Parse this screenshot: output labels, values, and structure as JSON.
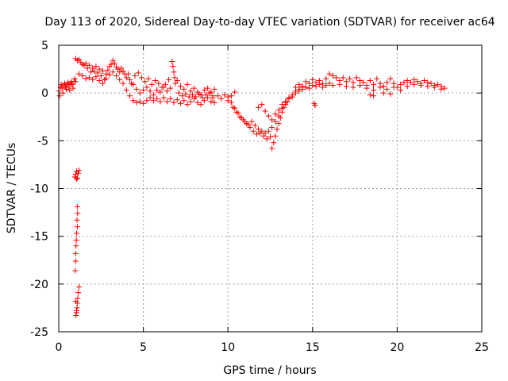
{
  "chart_data": {
    "type": "scatter",
    "title": "Day 113 of 2020, Sidereal Day-to-day VTEC variation (SDTVAR) for receiver ac64",
    "xlabel": "GPS time / hours",
    "ylabel": "SDTVAR / TECUs",
    "xlim": [
      0,
      25
    ],
    "ylim": [
      -25,
      5
    ],
    "xticks": [
      0,
      5,
      10,
      15,
      20,
      25
    ],
    "yticks": [
      -25,
      -20,
      -15,
      -10,
      -5,
      0,
      5
    ],
    "grid": true,
    "marker": "+",
    "series_color": "#ff0000",
    "series": [
      {
        "name": "SDTVAR",
        "points": [
          [
            0.0,
            0.2
          ],
          [
            0.05,
            -0.3
          ],
          [
            0.1,
            0.6
          ],
          [
            0.15,
            0.9
          ],
          [
            0.2,
            0.5
          ],
          [
            0.25,
            0.0
          ],
          [
            0.3,
            0.8
          ],
          [
            0.35,
            1.0
          ],
          [
            0.4,
            0.6
          ],
          [
            0.45,
            0.4
          ],
          [
            0.5,
            0.9
          ],
          [
            0.55,
            1.1
          ],
          [
            0.6,
            0.7
          ],
          [
            0.65,
            0.3
          ],
          [
            0.7,
            1.0
          ],
          [
            0.75,
            1.2
          ],
          [
            0.8,
            0.9
          ],
          [
            0.85,
            0.5
          ],
          [
            0.9,
            1.2
          ],
          [
            0.95,
            1.5
          ],
          [
            1.0,
            1.2
          ],
          [
            0.95,
            -8.8
          ],
          [
            1.0,
            -8.5
          ],
          [
            1.05,
            -8.2
          ],
          [
            1.1,
            -8.9
          ],
          [
            1.15,
            -8.4
          ],
          [
            1.2,
            -8.1
          ],
          [
            1.05,
            -9.0
          ],
          [
            1.1,
            -11.9
          ],
          [
            1.12,
            -12.6
          ],
          [
            1.08,
            -13.3
          ],
          [
            1.1,
            -14.0
          ],
          [
            1.06,
            -14.7
          ],
          [
            1.04,
            -15.4
          ],
          [
            1.02,
            -16.0
          ],
          [
            1.0,
            -16.8
          ],
          [
            1.0,
            -17.6
          ],
          [
            0.98,
            -18.6
          ],
          [
            1.2,
            -20.3
          ],
          [
            1.15,
            -20.9
          ],
          [
            1.12,
            -21.5
          ],
          [
            1.1,
            -22.0
          ],
          [
            1.08,
            -22.5
          ],
          [
            1.05,
            -23.0
          ],
          [
            1.02,
            -23.3
          ],
          [
            1.0,
            -21.8
          ],
          [
            1.05,
            -22.8
          ],
          [
            1.0,
            3.6
          ],
          [
            1.1,
            3.4
          ],
          [
            1.2,
            3.5
          ],
          [
            1.3,
            3.2
          ],
          [
            1.4,
            3.0
          ],
          [
            1.5,
            2.9
          ],
          [
            1.6,
            3.1
          ],
          [
            1.7,
            2.6
          ],
          [
            1.8,
            2.9
          ],
          [
            1.9,
            2.2
          ],
          [
            2.0,
            2.6
          ],
          [
            2.1,
            2.3
          ],
          [
            2.2,
            2.8
          ],
          [
            2.3,
            2.1
          ],
          [
            2.4,
            2.5
          ],
          [
            2.5,
            1.8
          ],
          [
            2.6,
            2.3
          ],
          [
            2.7,
            1.4
          ],
          [
            2.8,
            2.0
          ],
          [
            2.9,
            2.4
          ],
          [
            3.0,
            2.8
          ],
          [
            3.1,
            3.0
          ],
          [
            3.2,
            3.4
          ],
          [
            3.3,
            3.1
          ],
          [
            3.4,
            2.7
          ],
          [
            3.5,
            2.5
          ],
          [
            3.6,
            2.2
          ],
          [
            3.7,
            2.6
          ],
          [
            3.8,
            2.3
          ],
          [
            3.9,
            2.0
          ],
          [
            4.0,
            1.6
          ],
          [
            4.1,
            2.0
          ],
          [
            4.2,
            1.4
          ],
          [
            4.3,
            1.0
          ],
          [
            1.2,
            2.0
          ],
          [
            1.4,
            1.8
          ],
          [
            1.6,
            1.5
          ],
          [
            1.8,
            1.6
          ],
          [
            2.0,
            1.4
          ],
          [
            2.2,
            1.7
          ],
          [
            2.4,
            1.3
          ],
          [
            2.6,
            1.0
          ],
          [
            2.8,
            1.5
          ],
          [
            3.0,
            1.9
          ],
          [
            3.2,
            2.2
          ],
          [
            3.4,
            1.8
          ],
          [
            3.6,
            1.4
          ],
          [
            3.8,
            1.0
          ],
          [
            4.0,
            0.3
          ],
          [
            4.2,
            -0.3
          ],
          [
            4.4,
            -0.8
          ],
          [
            4.6,
            -1.0
          ],
          [
            4.8,
            -0.9
          ],
          [
            5.0,
            -1.1
          ],
          [
            5.2,
            -0.8
          ],
          [
            5.4,
            -0.5
          ],
          [
            5.6,
            -0.8
          ],
          [
            5.8,
            -0.6
          ],
          [
            6.0,
            -0.9
          ],
          [
            6.2,
            -0.5
          ],
          [
            6.4,
            -0.9
          ],
          [
            6.6,
            -0.6
          ],
          [
            6.8,
            -1.0
          ],
          [
            7.0,
            -0.7
          ],
          [
            7.2,
            -1.1
          ],
          [
            7.4,
            -0.8
          ],
          [
            7.6,
            -1.2
          ],
          [
            7.8,
            -0.9
          ],
          [
            8.0,
            -0.6
          ],
          [
            8.2,
            -1.0
          ],
          [
            8.4,
            -1.2
          ],
          [
            8.6,
            -0.8
          ],
          [
            8.8,
            -0.5
          ],
          [
            9.0,
            -0.9
          ],
          [
            9.1,
            -0.5
          ],
          [
            9.2,
            -1.0
          ],
          [
            4.4,
            0.9
          ],
          [
            4.6,
            0.4
          ],
          [
            4.8,
            0.0
          ],
          [
            5.0,
            0.3
          ],
          [
            5.2,
            0.6
          ],
          [
            5.4,
            0.2
          ],
          [
            5.6,
            -0.2
          ],
          [
            5.8,
            0.3
          ],
          [
            6.0,
            0.1
          ],
          [
            6.2,
            0.6
          ],
          [
            6.4,
            0.2
          ],
          [
            6.6,
            0.5
          ],
          [
            6.7,
            3.3
          ],
          [
            6.75,
            2.8
          ],
          [
            6.8,
            2.2
          ],
          [
            6.85,
            1.6
          ],
          [
            6.9,
            1.0
          ],
          [
            7.0,
            1.3
          ],
          [
            7.2,
            0.7
          ],
          [
            7.4,
            0.4
          ],
          [
            7.6,
            0.9
          ],
          [
            7.8,
            0.2
          ],
          [
            8.0,
            0.5
          ],
          [
            8.2,
            0.1
          ],
          [
            8.4,
            -0.2
          ],
          [
            8.6,
            0.3
          ],
          [
            8.8,
            0.5
          ],
          [
            9.0,
            0.1
          ],
          [
            9.2,
            0.4
          ],
          [
            4.5,
            1.8
          ],
          [
            4.7,
            2.1
          ],
          [
            4.9,
            1.6
          ],
          [
            5.1,
            1.2
          ],
          [
            5.3,
            1.5
          ],
          [
            5.5,
            0.9
          ],
          [
            5.7,
            1.3
          ],
          [
            5.9,
            1.0
          ],
          [
            6.1,
            0.6
          ],
          [
            6.3,
            0.9
          ],
          [
            6.5,
            1.4
          ],
          [
            7.1,
            0.0
          ],
          [
            7.3,
            -0.3
          ],
          [
            7.5,
            -0.1
          ],
          [
            7.7,
            -0.4
          ],
          [
            7.9,
            -0.2
          ],
          [
            8.1,
            -0.4
          ],
          [
            8.3,
            -0.1
          ],
          [
            8.5,
            -0.5
          ],
          [
            8.7,
            -0.2
          ],
          [
            8.9,
            0.0
          ],
          [
            9.1,
            -0.3
          ],
          [
            9.4,
            -0.3
          ],
          [
            9.6,
            -0.6
          ],
          [
            9.8,
            -0.2
          ],
          [
            10.0,
            -0.8
          ],
          [
            10.2,
            -0.3
          ],
          [
            10.4,
            0.1
          ],
          [
            10.3,
            -1.5
          ],
          [
            10.5,
            -2.0
          ],
          [
            10.7,
            -2.5
          ],
          [
            10.9,
            -2.8
          ],
          [
            11.1,
            -3.2
          ],
          [
            11.3,
            -3.6
          ],
          [
            11.5,
            -4.0
          ],
          [
            11.7,
            -4.3
          ],
          [
            11.9,
            -4.2
          ],
          [
            12.1,
            -4.5
          ],
          [
            12.3,
            -4.8
          ],
          [
            12.5,
            -4.6
          ],
          [
            12.6,
            -5.8
          ],
          [
            12.7,
            -5.2
          ],
          [
            12.8,
            -4.5
          ],
          [
            12.9,
            -3.8
          ],
          [
            13.0,
            -3.2
          ],
          [
            13.1,
            -2.6
          ],
          [
            13.2,
            -2.0
          ],
          [
            13.3,
            -1.5
          ],
          [
            13.4,
            -1.2
          ],
          [
            13.5,
            -0.9
          ],
          [
            10.0,
            -0.4
          ],
          [
            10.2,
            -1.0
          ],
          [
            10.4,
            -1.6
          ],
          [
            10.6,
            -2.1
          ],
          [
            10.8,
            -2.6
          ],
          [
            11.0,
            -3.0
          ],
          [
            11.2,
            -3.3
          ],
          [
            11.4,
            -3.0
          ],
          [
            11.6,
            -3.4
          ],
          [
            11.8,
            -3.8
          ],
          [
            12.0,
            -4.0
          ],
          [
            12.2,
            -4.2
          ],
          [
            12.4,
            -4.0
          ],
          [
            12.6,
            -3.6
          ],
          [
            12.8,
            -3.0
          ],
          [
            13.0,
            -2.4
          ],
          [
            13.2,
            -1.6
          ],
          [
            13.4,
            -1.0
          ],
          [
            13.6,
            -0.5
          ],
          [
            13.8,
            -0.2
          ],
          [
            14.0,
            0.2
          ],
          [
            11.8,
            -1.5
          ],
          [
            12.0,
            -1.2
          ],
          [
            12.2,
            -1.9
          ],
          [
            12.4,
            -2.4
          ],
          [
            12.6,
            -2.8
          ],
          [
            12.8,
            -2.2
          ],
          [
            13.0,
            -1.8
          ],
          [
            13.2,
            -1.2
          ],
          [
            13.4,
            -0.9
          ],
          [
            13.6,
            -0.6
          ],
          [
            13.8,
            -0.4
          ],
          [
            14.0,
            0.0
          ],
          [
            14.2,
            0.4
          ],
          [
            14.4,
            0.6
          ],
          [
            14.0,
            0.6
          ],
          [
            14.2,
            0.9
          ],
          [
            14.4,
            0.7
          ],
          [
            14.6,
            1.2
          ],
          [
            14.8,
            1.0
          ],
          [
            15.0,
            1.4
          ],
          [
            15.2,
            1.1
          ],
          [
            15.4,
            1.3
          ],
          [
            15.6,
            1.0
          ],
          [
            15.8,
            1.5
          ],
          [
            16.0,
            2.0
          ],
          [
            16.2,
            1.8
          ],
          [
            16.4,
            1.6
          ],
          [
            16.6,
            1.3
          ],
          [
            16.8,
            1.6
          ],
          [
            17.0,
            1.2
          ],
          [
            17.2,
            1.5
          ],
          [
            17.4,
            1.1
          ],
          [
            17.6,
            1.6
          ],
          [
            17.8,
            1.3
          ],
          [
            18.0,
            1.1
          ],
          [
            18.2,
            0.8
          ],
          [
            18.4,
            1.3
          ],
          [
            18.6,
            0.9
          ],
          [
            18.8,
            1.5
          ],
          [
            19.0,
            1.0
          ],
          [
            19.2,
            0.7
          ],
          [
            19.4,
            1.1
          ],
          [
            19.6,
            1.5
          ],
          [
            19.8,
            1.0
          ],
          [
            20.0,
            0.6
          ],
          [
            20.2,
            0.9
          ],
          [
            20.4,
            1.1
          ],
          [
            20.6,
            1.3
          ],
          [
            20.8,
            1.1
          ],
          [
            21.0,
            1.4
          ],
          [
            21.2,
            1.2
          ],
          [
            21.4,
            1.0
          ],
          [
            21.6,
            1.3
          ],
          [
            21.8,
            1.1
          ],
          [
            22.0,
            1.0
          ],
          [
            22.2,
            0.8
          ],
          [
            22.4,
            0.9
          ],
          [
            22.6,
            0.7
          ],
          [
            22.8,
            0.5
          ],
          [
            14.2,
            0.2
          ],
          [
            14.4,
            0.4
          ],
          [
            14.6,
            0.6
          ],
          [
            14.8,
            0.5
          ],
          [
            15.0,
            0.8
          ],
          [
            15.2,
            0.7
          ],
          [
            15.4,
            0.9
          ],
          [
            15.6,
            0.6
          ],
          [
            15.8,
            0.8
          ],
          [
            16.0,
            1.0
          ],
          [
            16.2,
            0.8
          ],
          [
            16.6,
            0.9
          ],
          [
            17.0,
            0.7
          ],
          [
            17.4,
            0.6
          ],
          [
            17.8,
            0.8
          ],
          [
            18.2,
            0.5
          ],
          [
            18.6,
            0.3
          ],
          [
            19.0,
            0.6
          ],
          [
            19.4,
            0.4
          ],
          [
            19.8,
            0.6
          ],
          [
            20.2,
            0.3
          ],
          [
            20.6,
            0.7
          ],
          [
            21.0,
            0.9
          ],
          [
            21.4,
            0.8
          ],
          [
            21.8,
            0.7
          ],
          [
            22.2,
            0.6
          ],
          [
            22.6,
            0.4
          ],
          [
            15.1,
            -1.1
          ],
          [
            15.15,
            -1.3
          ],
          [
            18.4,
            -0.2
          ],
          [
            18.6,
            -0.3
          ],
          [
            19.2,
            0.0
          ],
          [
            19.6,
            -0.1
          ]
        ]
      }
    ]
  }
}
